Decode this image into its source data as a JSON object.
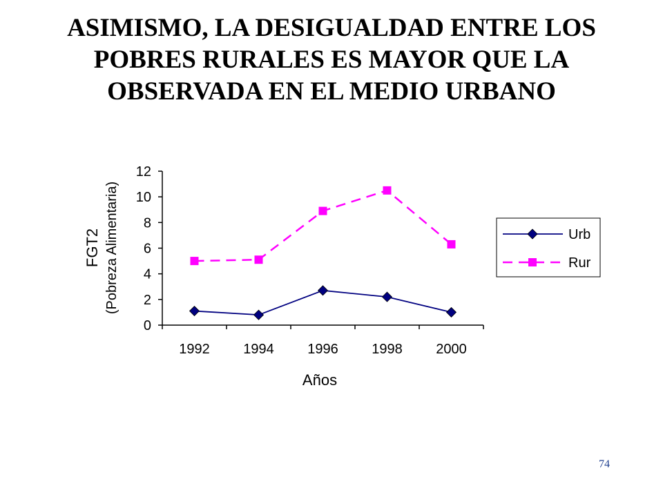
{
  "slide": {
    "title_lines": [
      "ASIMISMO, LA DESIGUALDAD ENTRE LOS",
      "POBRES RURALES ES MAYOR QUE LA",
      "OBSERVADA EN EL MEDIO URBANO"
    ],
    "page_number": "74"
  },
  "chart_data": {
    "type": "line",
    "title": "",
    "xlabel": "Años",
    "ylabel_lines": [
      "FGT2",
      "(Pobreza Alimentaria)"
    ],
    "categories": [
      "1992",
      "1994",
      "1996",
      "1998",
      "2000"
    ],
    "ylim": [
      0,
      12
    ],
    "yticks": [
      0,
      2,
      4,
      6,
      8,
      10,
      12
    ],
    "grid": false,
    "legend_position": "right",
    "series": [
      {
        "name": "Urb",
        "values": [
          1.1,
          0.8,
          2.7,
          2.2,
          1.0
        ],
        "color": "#000080",
        "line_style": "solid",
        "marker": "diamond"
      },
      {
        "name": "Rur",
        "values": [
          5.0,
          5.1,
          8.9,
          10.5,
          6.3
        ],
        "color": "#ff00ff",
        "line_style": "dashed",
        "marker": "square"
      }
    ]
  }
}
